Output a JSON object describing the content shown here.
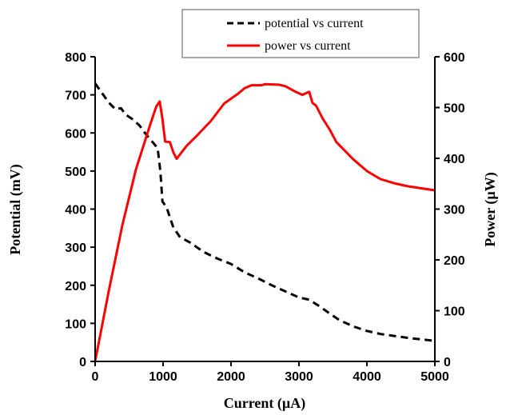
{
  "chart_data": {
    "type": "line",
    "title": "",
    "xlabel": "Current (µA)",
    "ylabel_left": "Potential (mV)",
    "ylabel_right": "Power (µW)",
    "xlim": [
      0,
      5000
    ],
    "ylim_left": [
      0,
      800
    ],
    "ylim_right": [
      0,
      600
    ],
    "x_ticks": [
      "0",
      "1000",
      "2000",
      "3000",
      "4000",
      "5000"
    ],
    "y_left_ticks": [
      "0",
      "100",
      "200",
      "300",
      "400",
      "500",
      "600",
      "700",
      "800"
    ],
    "y_right_ticks": [
      "0",
      "100",
      "200",
      "300",
      "400",
      "500",
      "600"
    ],
    "grid": false,
    "legend_position": "top",
    "series": [
      {
        "name": "potential vs current",
        "axis": "left",
        "style": "dashed",
        "color": "#000000",
        "points": [
          [
            0,
            730
          ],
          [
            100,
            705
          ],
          [
            200,
            680
          ],
          [
            300,
            662
          ],
          [
            380,
            665
          ],
          [
            450,
            648
          ],
          [
            550,
            636
          ],
          [
            650,
            620
          ],
          [
            750,
            596
          ],
          [
            850,
            575
          ],
          [
            920,
            560
          ],
          [
            960,
            500
          ],
          [
            990,
            420
          ],
          [
            1050,
            405
          ],
          [
            1150,
            352
          ],
          [
            1250,
            326
          ],
          [
            1400,
            312
          ],
          [
            1600,
            287
          ],
          [
            1800,
            270
          ],
          [
            2000,
            256
          ],
          [
            2200,
            234
          ],
          [
            2400,
            218
          ],
          [
            2600,
            200
          ],
          [
            2800,
            184
          ],
          [
            3000,
            168
          ],
          [
            3150,
            162
          ],
          [
            3300,
            145
          ],
          [
            3450,
            126
          ],
          [
            3600,
            108
          ],
          [
            3800,
            92
          ],
          [
            4000,
            80
          ],
          [
            4200,
            72
          ],
          [
            4400,
            67
          ],
          [
            4600,
            62
          ],
          [
            4800,
            58
          ],
          [
            5000,
            54
          ]
        ]
      },
      {
        "name": "power vs current",
        "axis": "right",
        "style": "solid",
        "color": "#ff0000",
        "points": [
          [
            0,
            0
          ],
          [
            200,
            138
          ],
          [
            400,
            268
          ],
          [
            600,
            378
          ],
          [
            800,
            462
          ],
          [
            900,
            502
          ],
          [
            950,
            512
          ],
          [
            990,
            478
          ],
          [
            1030,
            433
          ],
          [
            1100,
            432
          ],
          [
            1150,
            412
          ],
          [
            1200,
            399
          ],
          [
            1280,
            413
          ],
          [
            1350,
            425
          ],
          [
            1500,
            445
          ],
          [
            1700,
            473
          ],
          [
            1900,
            508
          ],
          [
            2100,
            527
          ],
          [
            2200,
            538
          ],
          [
            2300,
            544
          ],
          [
            2450,
            544
          ],
          [
            2500,
            546
          ],
          [
            2700,
            545
          ],
          [
            2800,
            542
          ],
          [
            2950,
            531
          ],
          [
            3050,
            525
          ],
          [
            3150,
            531
          ],
          [
            3200,
            509
          ],
          [
            3250,
            504
          ],
          [
            3350,
            478
          ],
          [
            3450,
            457
          ],
          [
            3550,
            432
          ],
          [
            3800,
            398
          ],
          [
            4000,
            375
          ],
          [
            4200,
            359
          ],
          [
            4400,
            351
          ],
          [
            4600,
            345
          ],
          [
            4800,
            341
          ],
          [
            5000,
            337
          ]
        ]
      }
    ]
  }
}
